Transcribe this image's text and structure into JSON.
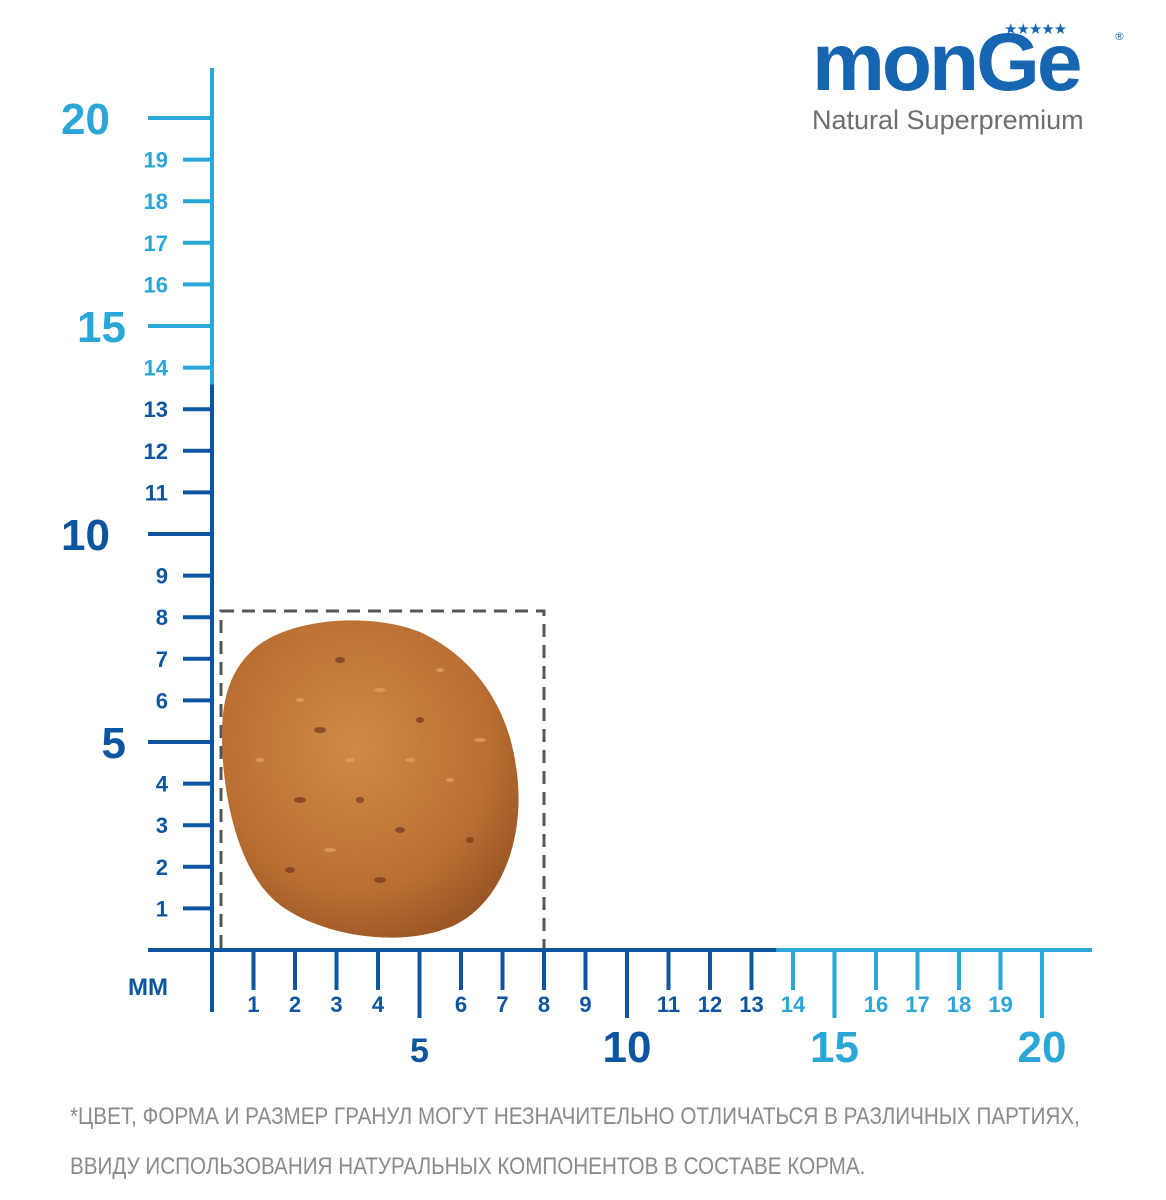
{
  "brand": {
    "name": "Monge",
    "wordmark_text": "monGe",
    "stars": "★★★★★",
    "registered_mark": "®",
    "tagline": "Natural Superpremium",
    "color": "#1565b0",
    "tagline_color": "#6e6e6e"
  },
  "ruler": {
    "unit_label": "мм",
    "dark_color": "#0d55a0",
    "light_color": "#2aa6d8",
    "y_axis": {
      "major_labels": [
        "5",
        "10",
        "15",
        "20"
      ],
      "minor_labels": [
        "1",
        "2",
        "3",
        "4",
        "6",
        "7",
        "8",
        "9",
        "11",
        "12",
        "13",
        "14",
        "16",
        "17",
        "18",
        "19"
      ]
    },
    "x_axis": {
      "major_labels": [
        "5",
        "10",
        "15",
        "20"
      ],
      "minor_labels": [
        "1",
        "2",
        "3",
        "4",
        "6",
        "7",
        "8",
        "9",
        "11",
        "12",
        "13",
        "14",
        "16",
        "17",
        "18",
        "19"
      ]
    }
  },
  "kibble": {
    "description_icon": "kibble-pellet-image",
    "outline_width_mm": 8,
    "outline_height_mm": 8.5,
    "outline_color": "#555555",
    "pellet_color": "#c07838"
  },
  "footnote": {
    "line1": "*ЦВЕТ, ФОРМА И РАЗМЕР ГРАНУЛ МОГУТ НЕЗНАЧИТЕЛЬНО ОТЛИЧАТЬСЯ В РАЗЛИЧНЫХ ПАРТИЯХ,",
    "line2": "ВВИДУ ИСПОЛЬЗОВАНИЯ НАТУРАЛЬНЫХ КОМПОНЕНТОВ В СОСТАВЕ КОРМА.",
    "color": "#8a8a8a"
  }
}
